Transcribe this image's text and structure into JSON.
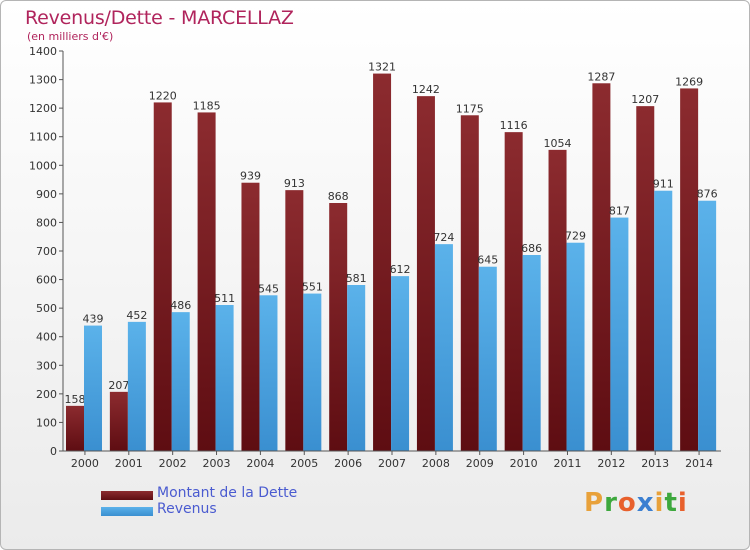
{
  "header": {
    "title": "Revenus/Dette - MARCELLAZ",
    "subtitle": "(en milliers d'€)"
  },
  "legend": {
    "debt_label": "Montant de la Dette",
    "revenue_label": "Revenus"
  },
  "logo": {
    "letters": [
      "P",
      "r",
      "o",
      "x",
      "i",
      "t",
      "i"
    ],
    "colors": [
      "#e8a13a",
      "#3da83d",
      "#e8602c",
      "#3b7fd1",
      "#e8a13a",
      "#3da83d",
      "#e8602c"
    ]
  },
  "colors": {
    "debt": "#7b1d22",
    "revenue": "#4ea6e0",
    "axis": "#555555"
  },
  "chart_data": {
    "type": "bar",
    "title": "Revenus/Dette - MARCELLAZ",
    "subtitle": "(en milliers d'€)",
    "categories": [
      "2000",
      "2001",
      "2002",
      "2003",
      "2004",
      "2005",
      "2006",
      "2007",
      "2008",
      "2009",
      "2010",
      "2011",
      "2012",
      "2013",
      "2014"
    ],
    "series": [
      {
        "name": "Montant de la Dette",
        "values": [
          158,
          207,
          1220,
          1185,
          939,
          913,
          868,
          1321,
          1242,
          1175,
          1116,
          1054,
          1287,
          1207,
          1269
        ]
      },
      {
        "name": "Revenus",
        "values": [
          439,
          452,
          486,
          511,
          545,
          551,
          581,
          612,
          724,
          645,
          686,
          729,
          817,
          911,
          876
        ]
      }
    ],
    "ylim": [
      0,
      1400
    ],
    "yticks": [
      0,
      100,
      200,
      300,
      400,
      500,
      600,
      700,
      800,
      900,
      1000,
      1100,
      1200,
      1300,
      1400
    ],
    "grid": false,
    "legend_position": "bottom-left"
  }
}
